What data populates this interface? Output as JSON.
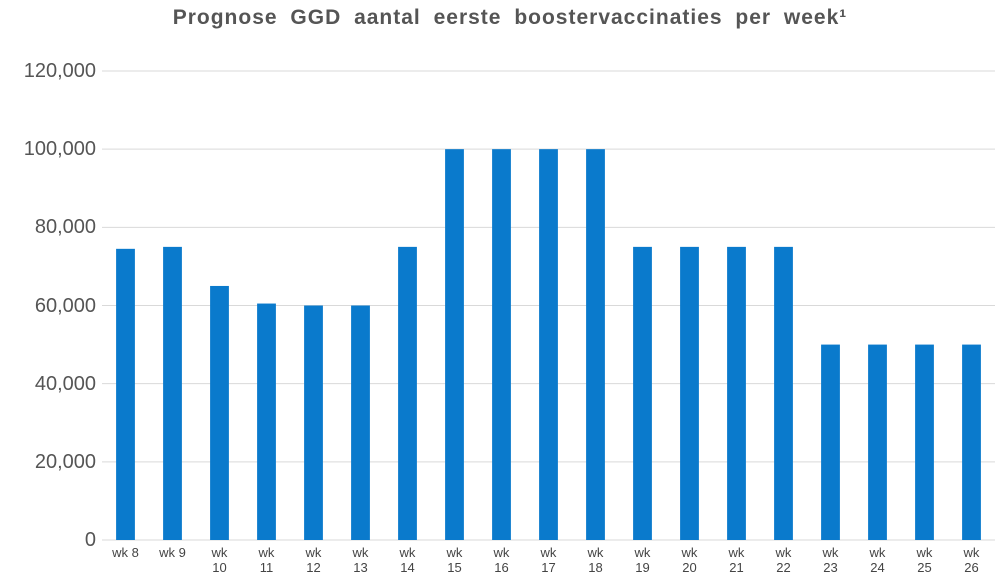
{
  "chart_data": {
    "type": "bar",
    "title": "Prognose GGD aantal eerste boostervaccinaties per week¹",
    "categories": [
      "wk 8",
      "wk 9",
      "wk 10",
      "wk 11",
      "wk 12",
      "wk 13",
      "wk 14",
      "wk 15",
      "wk 16",
      "wk 17",
      "wk 18",
      "wk 19",
      "wk 20",
      "wk 21",
      "wk 22",
      "wk 23",
      "wk 24",
      "wk 25",
      "wk 26"
    ],
    "values": [
      74500,
      75000,
      65000,
      60500,
      60000,
      60000,
      75000,
      100000,
      100000,
      100000,
      100000,
      75000,
      75000,
      75000,
      75000,
      50000,
      50000,
      50000,
      50000
    ],
    "color": "#0a7acc",
    "ylim": [
      0,
      120000
    ],
    "yticks": [
      0,
      {
        "value": 20000,
        "label": "20,000"
      },
      {
        "value": 40000,
        "label": "40,000"
      },
      {
        "value": 60000,
        "label": "60,000"
      },
      {
        "value": 80000,
        "label": "80,000"
      },
      {
        "value": 100000,
        "label": "100,000"
      },
      {
        "value": 120000,
        "label": "120,000"
      }
    ],
    "grid": true
  }
}
